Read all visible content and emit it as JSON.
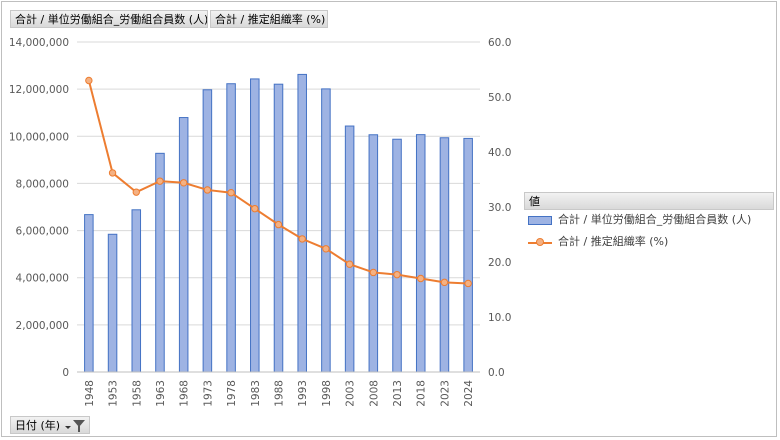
{
  "field_buttons": {
    "series1": "合計 / 単位労働組合_労働組合員数 (人)",
    "series2": "合計 / 推定組織率 (%)",
    "axis": "日付 (年)"
  },
  "legend": {
    "header": "値",
    "items": [
      "合計 / 単位労働組合_労働組合員数 (人)",
      "合計 / 推定組織率 (%)"
    ]
  },
  "colors": {
    "bar_fill": "#9eb3e3",
    "bar_stroke": "#4472c4",
    "line": "#ed7d31",
    "marker_fill": "#f4b183",
    "grid": "#d9d9d9"
  },
  "chart_data": {
    "type": "bar+line",
    "categories": [
      "1948",
      "1953",
      "1958",
      "1963",
      "1968",
      "1973",
      "1978",
      "1983",
      "1988",
      "1993",
      "1998",
      "2003",
      "2008",
      "2013",
      "2018",
      "2023",
      "2024"
    ],
    "series": [
      {
        "name": "合計 / 単位労働組合_労働組合員数 (人)",
        "type": "bar",
        "axis": "left",
        "values": [
          6677000,
          5843000,
          6882000,
          9277000,
          10795000,
          11973000,
          12230000,
          12434000,
          12210000,
          12625000,
          12011000,
          10435000,
          10065000,
          9875000,
          10070000,
          9938000,
          9910000
        ]
      },
      {
        "name": "合計 / 推定組織率 (%)",
        "type": "line",
        "axis": "right",
        "values": [
          53.0,
          36.2,
          32.7,
          34.7,
          34.4,
          33.1,
          32.6,
          29.7,
          26.8,
          24.2,
          22.4,
          19.6,
          18.1,
          17.7,
          17.0,
          16.3,
          16.1
        ]
      }
    ],
    "y_left": {
      "min": 0,
      "max": 14000000,
      "step": 2000000,
      "ticks": [
        "0",
        "2,000,000",
        "4,000,000",
        "6,000,000",
        "8,000,000",
        "10,000,000",
        "12,000,000",
        "14,000,000"
      ]
    },
    "y_right": {
      "min": 0,
      "max": 60,
      "step": 10,
      "ticks": [
        "0.0",
        "10.0",
        "20.0",
        "30.0",
        "40.0",
        "50.0",
        "60.0"
      ]
    }
  }
}
